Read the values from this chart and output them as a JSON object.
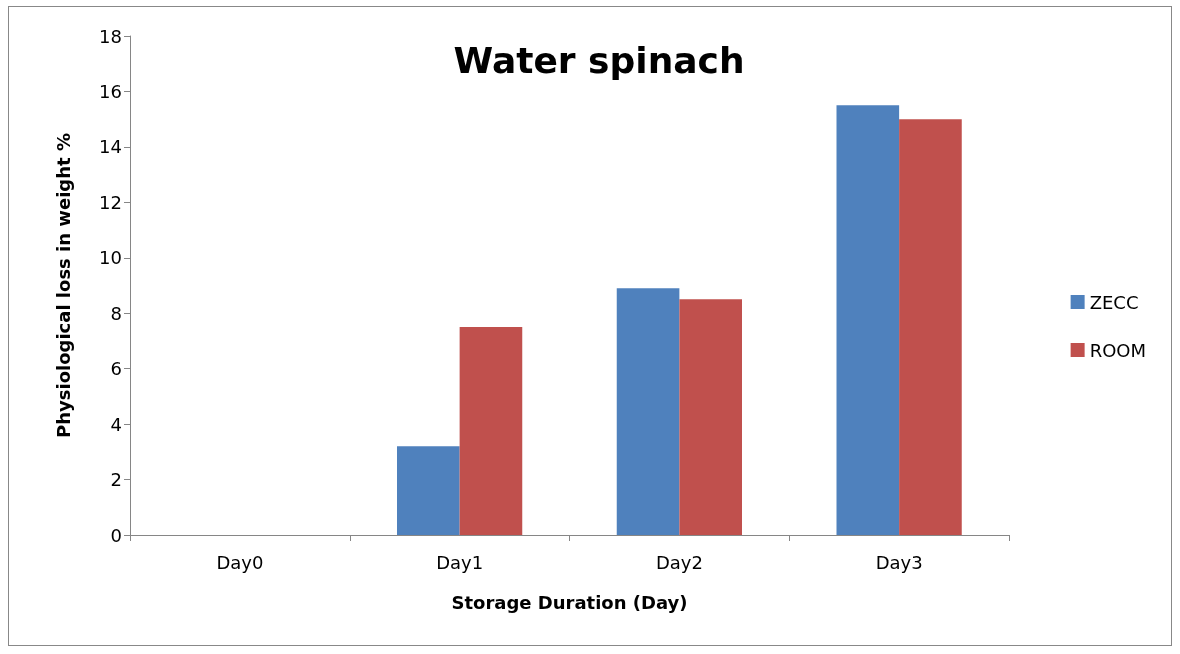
{
  "chart_data": {
    "type": "bar",
    "title": "Water spinach",
    "xlabel": "Storage Duration (Day)",
    "ylabel": "Physiological loss in weight %",
    "categories": [
      "Day0",
      "Day1",
      "Day2",
      "Day3"
    ],
    "series": [
      {
        "name": "ZECC",
        "color": "#4f81bd",
        "values": [
          0,
          3.2,
          8.9,
          15.5
        ]
      },
      {
        "name": "ROOM",
        "color": "#c0504d",
        "values": [
          0,
          7.5,
          8.5,
          15.0
        ]
      }
    ],
    "ylim": [
      0,
      18
    ],
    "yticks": [
      0,
      2,
      4,
      6,
      8,
      10,
      12,
      14,
      16,
      18
    ],
    "grid": false,
    "legend": "right"
  }
}
